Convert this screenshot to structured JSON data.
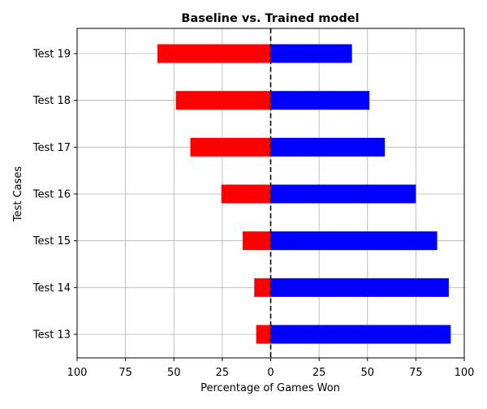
{
  "chart_data": {
    "type": "bar",
    "orientation": "horizontal",
    "title": "Baseline vs. Trained model",
    "xlabel": "Percentage of Games Won",
    "ylabel": "Test Cases",
    "categories": [
      "Test 13",
      "Test 14",
      "Test 15",
      "Test 16",
      "Test 17",
      "Test 18",
      "Test 19"
    ],
    "series": [
      {
        "color": "#ff0000",
        "values": [
          7.5,
          8.5,
          14.5,
          25.5,
          41.5,
          49.0,
          58.5
        ]
      },
      {
        "color": "#0000ff",
        "values": [
          93.0,
          92.0,
          86.0,
          75.0,
          59.0,
          51.0,
          42.0
        ]
      }
    ],
    "xlim": [
      -100,
      100
    ],
    "xticks": [
      -100,
      -75,
      -50,
      -25,
      0,
      25,
      50,
      75,
      100
    ],
    "xtick_labels": [
      "100",
      "75",
      "50",
      "25",
      "0",
      "25",
      "50",
      "75",
      "100"
    ],
    "grid": true,
    "zero_line_style": "dashed black"
  }
}
